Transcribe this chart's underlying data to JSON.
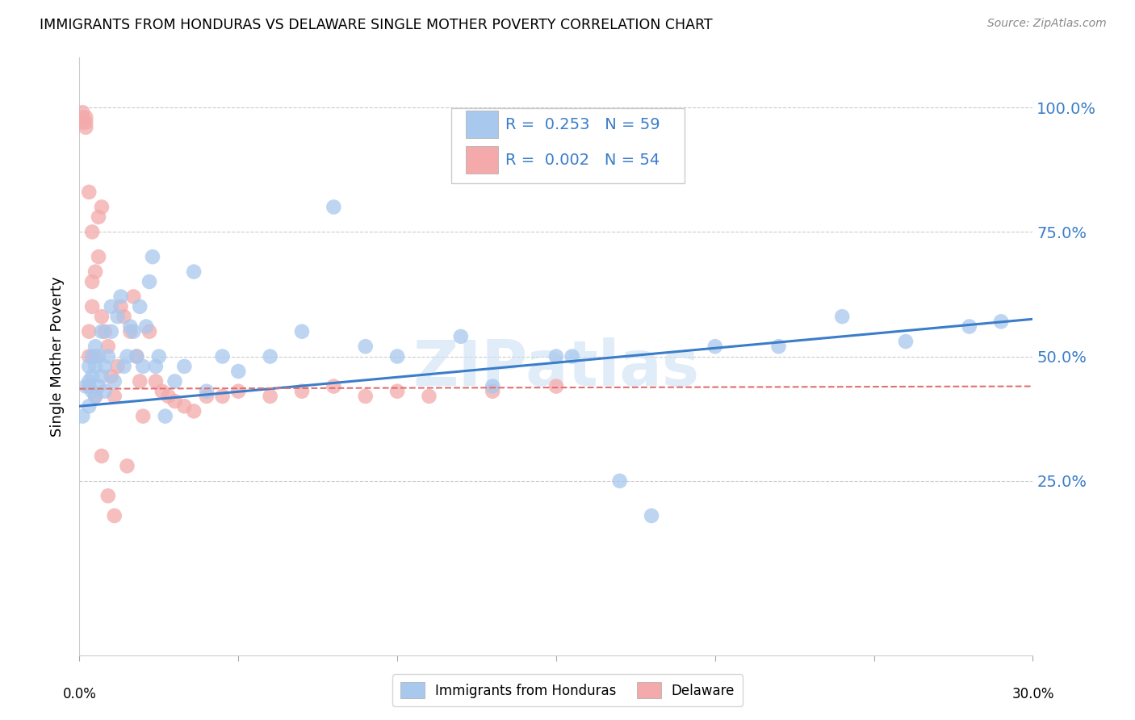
{
  "title": "IMMIGRANTS FROM HONDURAS VS DELAWARE SINGLE MOTHER POVERTY CORRELATION CHART",
  "source": "Source: ZipAtlas.com",
  "ylabel": "Single Mother Poverty",
  "ytick_values": [
    0.25,
    0.5,
    0.75,
    1.0
  ],
  "ytick_labels": [
    "25.0%",
    "50.0%",
    "75.0%",
    "100.0%"
  ],
  "legend1_label": "R =  0.253   N = 59",
  "legend2_label": "R =  0.002   N = 54",
  "legend_bottom1": "Immigrants from Honduras",
  "legend_bottom2": "Delaware",
  "blue_color": "#A8C8EE",
  "pink_color": "#F4AAAA",
  "blue_line_color": "#3A7DC9",
  "pink_line_color": "#E07070",
  "right_label_color": "#3A7DC9",
  "watermark": "ZIPatlas",
  "xlim": [
    0.0,
    0.3
  ],
  "ylim": [
    -0.1,
    1.1
  ],
  "blue_scatter_x": [
    0.001,
    0.002,
    0.003,
    0.003,
    0.003,
    0.004,
    0.004,
    0.004,
    0.005,
    0.005,
    0.005,
    0.006,
    0.006,
    0.007,
    0.007,
    0.008,
    0.008,
    0.009,
    0.01,
    0.01,
    0.011,
    0.012,
    0.013,
    0.014,
    0.015,
    0.016,
    0.017,
    0.018,
    0.019,
    0.02,
    0.021,
    0.022,
    0.023,
    0.024,
    0.025,
    0.027,
    0.03,
    0.033,
    0.036,
    0.04,
    0.045,
    0.05,
    0.06,
    0.07,
    0.08,
    0.1,
    0.12,
    0.15,
    0.17,
    0.18,
    0.2,
    0.22,
    0.24,
    0.26,
    0.28,
    0.29,
    0.13,
    0.155,
    0.09
  ],
  "blue_scatter_y": [
    0.38,
    0.44,
    0.45,
    0.4,
    0.48,
    0.43,
    0.46,
    0.5,
    0.42,
    0.48,
    0.52,
    0.44,
    0.5,
    0.46,
    0.55,
    0.48,
    0.43,
    0.5,
    0.55,
    0.6,
    0.45,
    0.58,
    0.62,
    0.48,
    0.5,
    0.56,
    0.55,
    0.5,
    0.6,
    0.48,
    0.56,
    0.65,
    0.7,
    0.48,
    0.5,
    0.38,
    0.45,
    0.48,
    0.67,
    0.43,
    0.5,
    0.47,
    0.5,
    0.55,
    0.8,
    0.5,
    0.54,
    0.5,
    0.25,
    0.18,
    0.52,
    0.52,
    0.58,
    0.53,
    0.56,
    0.57,
    0.44,
    0.5,
    0.52
  ],
  "pink_scatter_x": [
    0.001,
    0.001,
    0.001,
    0.002,
    0.002,
    0.002,
    0.003,
    0.003,
    0.003,
    0.004,
    0.004,
    0.005,
    0.005,
    0.006,
    0.006,
    0.007,
    0.007,
    0.008,
    0.009,
    0.01,
    0.011,
    0.012,
    0.013,
    0.014,
    0.015,
    0.016,
    0.017,
    0.018,
    0.019,
    0.02,
    0.022,
    0.024,
    0.026,
    0.028,
    0.03,
    0.033,
    0.036,
    0.04,
    0.045,
    0.05,
    0.06,
    0.07,
    0.08,
    0.09,
    0.1,
    0.11,
    0.13,
    0.15,
    0.003,
    0.004,
    0.005,
    0.007,
    0.009,
    0.011
  ],
  "pink_scatter_y": [
    0.97,
    0.98,
    0.99,
    0.97,
    0.98,
    0.96,
    0.44,
    0.5,
    0.55,
    0.6,
    0.65,
    0.42,
    0.5,
    0.7,
    0.78,
    0.8,
    0.58,
    0.55,
    0.52,
    0.46,
    0.42,
    0.48,
    0.6,
    0.58,
    0.28,
    0.55,
    0.62,
    0.5,
    0.45,
    0.38,
    0.55,
    0.45,
    0.43,
    0.42,
    0.41,
    0.4,
    0.39,
    0.42,
    0.42,
    0.43,
    0.42,
    0.43,
    0.44,
    0.42,
    0.43,
    0.42,
    0.43,
    0.44,
    0.83,
    0.75,
    0.67,
    0.3,
    0.22,
    0.18
  ],
  "blue_trend_x": [
    0.0,
    0.3
  ],
  "blue_trend_y": [
    0.4,
    0.575
  ],
  "pink_trend_x": [
    0.0,
    0.3
  ],
  "pink_trend_y": [
    0.435,
    0.44
  ]
}
